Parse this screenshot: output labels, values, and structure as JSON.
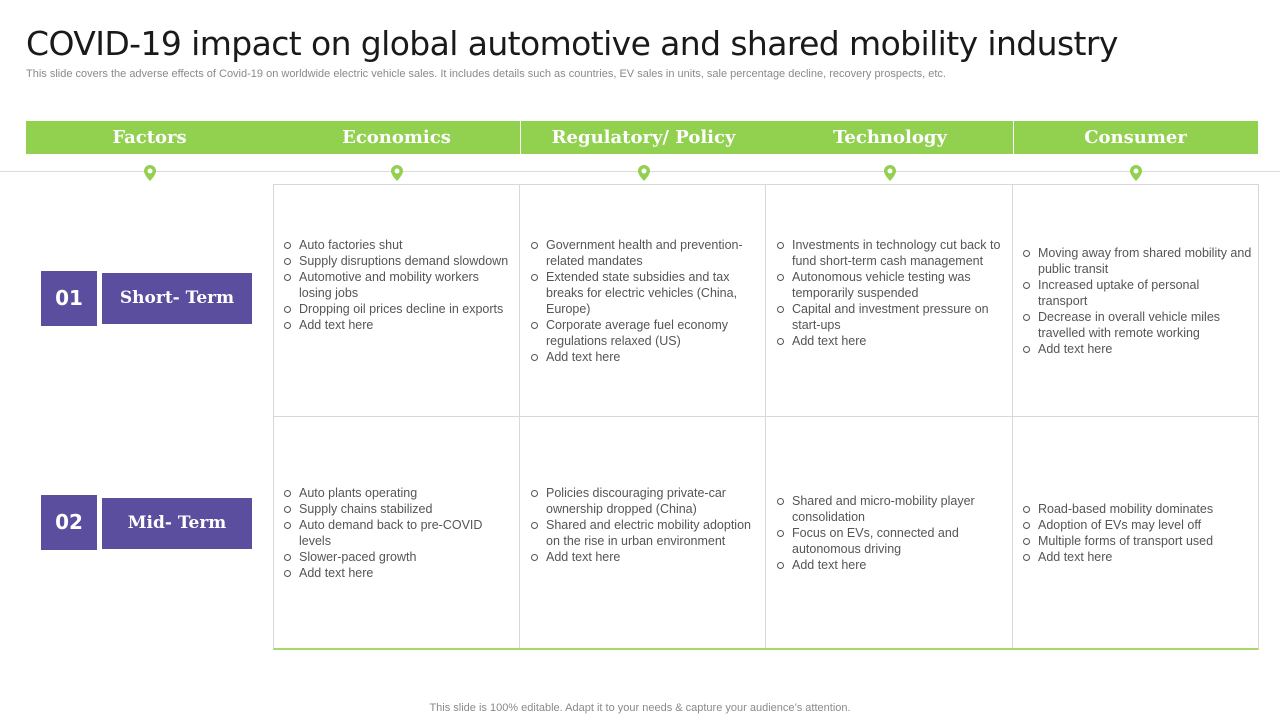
{
  "title": "COVID-19 impact on global automotive and shared mobility industry",
  "subtitle": "This slide covers the adverse effects of Covid-19 on worldwide electric vehicle sales. It includes details such as countries, EV sales in units, sale percentage decline, recovery prospects, etc.",
  "header": {
    "factors": "Factors",
    "economics": "Economics",
    "regulatory": "Regulatory/ Policy",
    "technology": "Technology",
    "consumer": "Consumer"
  },
  "rows": [
    {
      "number": "01",
      "label": "Short- Term",
      "economics": [
        "Auto factories shut",
        "Supply disruptions demand slowdown",
        "Automotive and mobility workers losing jobs",
        "Dropping oil prices decline in exports",
        "Add text here"
      ],
      "regulatory": [
        "Government  health and prevention-related  mandates",
        "Extended state subsidies and tax breaks for electric vehicles (China, Europe)",
        "Corporate average fuel economy regulations relaxed (US)",
        "Add text here"
      ],
      "technology": [
        "Investments in technology cut back to fund short-term cash management",
        "Autonomous vehicle testing was temporarily suspended",
        "Capital and investment pressure on start-ups",
        "Add text here"
      ],
      "consumer": [
        "Moving away from shared mobility and public transit",
        " Increased uptake of personal transport",
        "Decrease in overall vehicle miles travelled  with remote working",
        "Add text here"
      ]
    },
    {
      "number": "02",
      "label": "Mid- Term",
      "economics": [
        "Auto plants operating",
        "Supply chains stabilized",
        "Auto demand back to pre-COVID levels",
        "Slower-paced  growth",
        "Add text here"
      ],
      "regulatory": [
        "Policies discouraging private-car ownership dropped (China)",
        "Shared and electric mobility adoption on the rise in urban environment",
        "Add text here"
      ],
      "technology": [
        "Shared and micro-mobility player consolidation",
        "Focus on EVs, connected and autonomous driving",
        "Add text here"
      ],
      "consumer": [
        "Road-based  mobility dominates",
        "Adoption of EVs may level  off",
        "Multiple forms of transport used",
        "Add text here"
      ]
    }
  ],
  "footer": "This slide is 100% editable. Adapt it to your needs & capture your audience’s attention.",
  "colors": {
    "accent": "#92d050",
    "purple": "#5b4e9e"
  },
  "icons": {
    "connector": "map-pin-icon"
  }
}
